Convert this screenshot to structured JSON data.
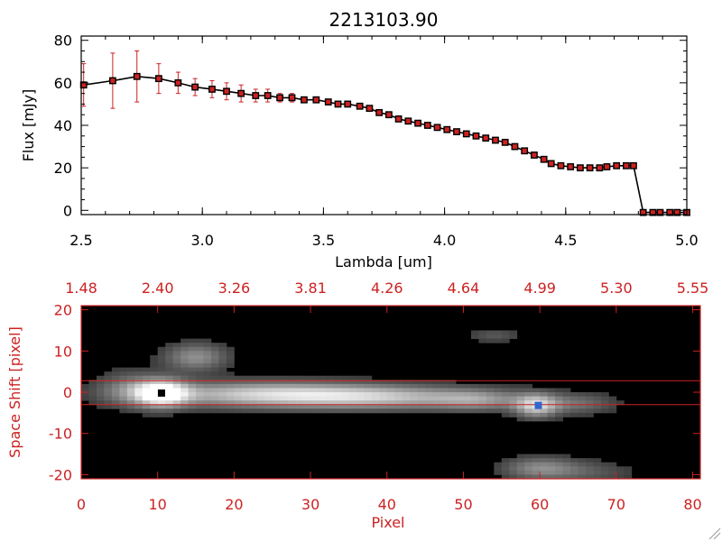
{
  "chart_data": [
    {
      "type": "line",
      "title": "2213103.90",
      "xlabel": "Lambda [um]",
      "ylabel": "Flux [mJy]",
      "xlim": [
        2.5,
        5.0
      ],
      "ylim": [
        -2,
        82
      ],
      "xticks": [
        "2.5",
        "3.0",
        "3.5",
        "4.0",
        "4.5",
        "5.0"
      ],
      "xtick_values": [
        2.5,
        3.0,
        3.5,
        4.0,
        4.5,
        5.0
      ],
      "yticks": [
        "0",
        "20",
        "40",
        "60",
        "80"
      ],
      "ytick_values": [
        0,
        20,
        40,
        60,
        80
      ],
      "marker_color": "#cc2222",
      "line_color": "#000000",
      "errorbar_color": "#cc2222",
      "series": [
        {
          "name": "flux",
          "x": [
            2.51,
            2.63,
            2.73,
            2.82,
            2.9,
            2.97,
            3.04,
            3.1,
            3.16,
            3.22,
            3.27,
            3.32,
            3.37,
            3.42,
            3.47,
            3.52,
            3.56,
            3.6,
            3.65,
            3.69,
            3.73,
            3.77,
            3.81,
            3.85,
            3.89,
            3.93,
            3.97,
            4.01,
            4.05,
            4.09,
            4.13,
            4.17,
            4.21,
            4.25,
            4.29,
            4.33,
            4.37,
            4.41,
            4.44,
            4.48,
            4.52,
            4.56,
            4.6,
            4.64,
            4.67,
            4.71,
            4.75,
            4.78,
            4.82,
            4.86,
            4.89,
            4.93,
            4.96,
            5.0
          ],
          "y": [
            59,
            61,
            63,
            62,
            60,
            58,
            57,
            56,
            55,
            54,
            54,
            53,
            53,
            52,
            52,
            51,
            50,
            50,
            49,
            48,
            46,
            45,
            43,
            42,
            41,
            40,
            39,
            38,
            37,
            36,
            35,
            34,
            33,
            32,
            30,
            28,
            26,
            24,
            22,
            21,
            20.5,
            20,
            20,
            20,
            20.5,
            21,
            21,
            21,
            -1,
            -1,
            -1,
            -1,
            -1,
            -1
          ],
          "yerr": [
            10,
            13,
            12,
            7,
            5,
            4,
            4,
            4,
            4,
            3,
            3,
            2,
            2,
            1,
            1,
            1,
            1,
            1,
            1,
            1,
            1,
            1,
            1,
            1,
            1,
            1,
            1,
            1,
            1,
            1,
            1,
            1,
            1,
            1,
            1,
            1,
            1,
            1,
            1,
            1,
            1,
            1,
            1,
            1,
            1,
            1,
            1,
            1,
            0,
            0,
            0,
            0,
            0,
            0
          ]
        }
      ]
    },
    {
      "type": "heatmap",
      "xlabel": "Pixel",
      "ylabel": "Space Shift [pixel]",
      "xlim": [
        0,
        81
      ],
      "ylim": [
        -21,
        21
      ],
      "xticks": [
        "0",
        "10",
        "20",
        "30",
        "40",
        "50",
        "60",
        "70",
        "80"
      ],
      "xtick_values": [
        0,
        10,
        20,
        30,
        40,
        50,
        60,
        70,
        80
      ],
      "yticks": [
        "20",
        "10",
        "0",
        "-10",
        "-20"
      ],
      "ytick_values": [
        20,
        10,
        0,
        -10,
        -20
      ],
      "top_axis_ticks": [
        "1.48",
        "2.40",
        "3.26",
        "3.81",
        "4.26",
        "4.64",
        "4.99",
        "5.30",
        "5.55"
      ],
      "top_axis_values": [
        0,
        10,
        20,
        30,
        40,
        50,
        60,
        70,
        80
      ],
      "axis_color": "#cc2222",
      "aperture_lines": [
        2.8,
        -3.0
      ],
      "markers": [
        {
          "name": "source",
          "x": 10.5,
          "y": -0.2,
          "color": "#000000"
        },
        {
          "name": "secondary",
          "x": 59.8,
          "y": -3.2,
          "color": "#3366cc"
        }
      ],
      "sources": [
        {
          "x": 10.5,
          "y": -0.2,
          "amp": 1.0,
          "sx": 2.4,
          "sy": 2.3
        },
        {
          "x": 24,
          "y": -0.5,
          "amp": 0.72,
          "sx": 11,
          "sy": 2.2
        },
        {
          "x": 40,
          "y": -1.3,
          "amp": 0.55,
          "sx": 10,
          "sy": 2.0
        },
        {
          "x": 52,
          "y": -2.0,
          "amp": 0.35,
          "sx": 4,
          "sy": 1.8
        },
        {
          "x": 59.5,
          "y": -3.3,
          "amp": 0.7,
          "sx": 2.0,
          "sy": 2.0
        },
        {
          "x": 65,
          "y": -2.8,
          "amp": 0.32,
          "sx": 3.5,
          "sy": 1.8
        },
        {
          "x": 15,
          "y": 8.5,
          "amp": 0.48,
          "sx": 3.0,
          "sy": 2.4
        },
        {
          "x": 60,
          "y": -18.5,
          "amp": 0.45,
          "sx": 3.5,
          "sy": 2.0
        },
        {
          "x": 67,
          "y": -19.5,
          "amp": 0.2,
          "sx": 4,
          "sy": 2
        },
        {
          "x": 54,
          "y": 13.8,
          "amp": 0.22,
          "sx": 2.5,
          "sy": 1.2
        },
        {
          "x": 6,
          "y": 1,
          "amp": 0.3,
          "sx": 3,
          "sy": 3
        }
      ]
    }
  ]
}
